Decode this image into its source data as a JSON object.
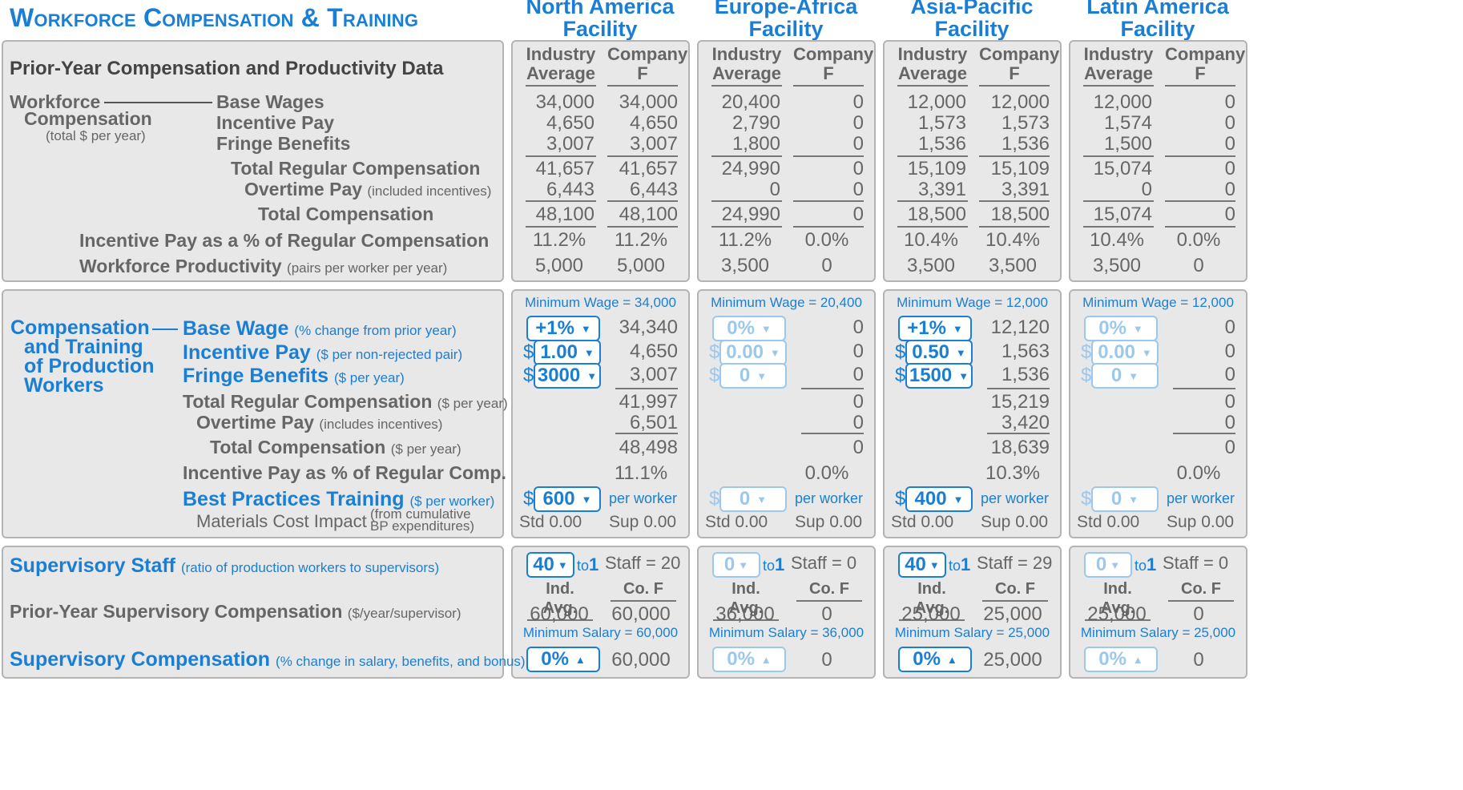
{
  "title": "Workforce Compensation & Training",
  "facilities": [
    "North America Facility",
    "Europe-Africa Facility",
    "Asia-Pacific Facility",
    "Latin America Facility"
  ],
  "col_headers": {
    "industry": "Industry Average",
    "company": "Company F"
  },
  "prior": {
    "heading": "Prior-Year Compensation and Productivity Data",
    "workforce": "Workforce",
    "compensation": "Compensation",
    "total_note": "(total $ per year)",
    "rows": {
      "base_wages": "Base Wages",
      "incentive_pay": "Incentive Pay",
      "fringe": "Fringe Benefits",
      "total_regular": "Total Regular Compensation",
      "overtime": "Overtime Pay",
      "overtime_note": "(included incentives)",
      "total_comp": "Total Compensation",
      "incentive_pct": "Incentive Pay as a % of Regular Compensation",
      "productivity": "Workforce Productivity",
      "productivity_note": "(pairs per worker per year)"
    },
    "values": [
      {
        "ind": [
          "34,000",
          "4,650",
          "3,007",
          "41,657",
          "6,443",
          "48,100",
          "11.2%",
          "5,000"
        ],
        "co": [
          "34,000",
          "4,650",
          "3,007",
          "41,657",
          "6,443",
          "48,100",
          "11.2%",
          "5,000"
        ]
      },
      {
        "ind": [
          "20,400",
          "2,790",
          "1,800",
          "24,990",
          "0",
          "24,990",
          "11.2%",
          "3,500"
        ],
        "co": [
          "0",
          "0",
          "0",
          "0",
          "0",
          "0",
          "0.0%",
          "0"
        ]
      },
      {
        "ind": [
          "12,000",
          "1,573",
          "1,536",
          "15,109",
          "3,391",
          "18,500",
          "10.4%",
          "3,500"
        ],
        "co": [
          "12,000",
          "1,573",
          "1,536",
          "15,109",
          "3,391",
          "18,500",
          "10.4%",
          "3,500"
        ]
      },
      {
        "ind": [
          "12,000",
          "1,574",
          "1,500",
          "15,074",
          "0",
          "15,074",
          "10.4%",
          "3,500"
        ],
        "co": [
          "0",
          "0",
          "0",
          "0",
          "0",
          "0",
          "0.0%",
          "0"
        ]
      }
    ]
  },
  "decisions": {
    "group_label": [
      "Compensation",
      "and Training",
      "of Production",
      "Workers"
    ],
    "base_wage": "Base Wage",
    "base_wage_note": "(% change from prior year)",
    "incentive": "Incentive Pay",
    "incentive_note": "($ per non-rejected pair)",
    "fringe": "Fringe Benefits",
    "fringe_note": "($ per year)",
    "total_regular": "Total Regular Compensation",
    "total_regular_note": "($ per year)",
    "overtime": "Overtime Pay",
    "overtime_note": "(includes incentives)",
    "total_comp": "Total Compensation",
    "total_comp_note": "($ per year)",
    "incentive_pct": "Incentive Pay as % of Regular Comp.",
    "training": "Best Practices Training",
    "training_note": "($ per worker)",
    "materials": "Materials Cost Impact",
    "materials_note_1": "(from cumulative",
    "materials_note_2": "BP expenditures)",
    "per_worker": "per worker",
    "dollar": "$",
    "facilities": [
      {
        "min_wage": "Minimum Wage = 34,000",
        "wage_sel": "+1%",
        "incentive_sel": "1.00",
        "fringe_sel": "3000",
        "wage_val": "34,340",
        "incentive_val": "4,650",
        "fringe_val": "3,007",
        "total_regular": "41,997",
        "overtime": "6,501",
        "total_comp": "48,498",
        "incentive_pct": "11.1%",
        "training_sel": "600",
        "std": "Std 0.00",
        "sup": "Sup 0.00",
        "active": true
      },
      {
        "min_wage": "Minimum Wage = 20,400",
        "wage_sel": "0%",
        "incentive_sel": "0.00",
        "fringe_sel": "0",
        "wage_val": "0",
        "incentive_val": "0",
        "fringe_val": "0",
        "total_regular": "0",
        "overtime": "0",
        "total_comp": "0",
        "incentive_pct": "0.0%",
        "training_sel": "0",
        "std": "Std 0.00",
        "sup": "Sup 0.00",
        "active": false
      },
      {
        "min_wage": "Minimum Wage = 12,000",
        "wage_sel": "+1%",
        "incentive_sel": "0.50",
        "fringe_sel": "1500",
        "wage_val": "12,120",
        "incentive_val": "1,563",
        "fringe_val": "1,536",
        "total_regular": "15,219",
        "overtime": "3,420",
        "total_comp": "18,639",
        "incentive_pct": "10.3%",
        "training_sel": "400",
        "std": "Std 0.00",
        "sup": "Sup 0.00",
        "active": true
      },
      {
        "min_wage": "Minimum Wage = 12,000",
        "wage_sel": "0%",
        "incentive_sel": "0.00",
        "fringe_sel": "0",
        "wage_val": "0",
        "incentive_val": "0",
        "fringe_val": "0",
        "total_regular": "0",
        "overtime": "0",
        "total_comp": "0",
        "incentive_pct": "0.0%",
        "training_sel": "0",
        "std": "Std 0.00",
        "sup": "Sup 0.00",
        "active": false
      }
    ]
  },
  "supervisory": {
    "staff_label": "Supervisory Staff",
    "staff_note": "(ratio of production workers to supervisors)",
    "prior_label": "Prior-Year Supervisory Compensation",
    "prior_note": "($/year/supervisor)",
    "comp_label": "Supervisory Compensation",
    "comp_note": "(% change in salary, benefits, and bonus)",
    "to1_prefix": "to",
    "to1_num": "1",
    "ind_hdr": "Ind. Avg.",
    "co_hdr": "Co. F",
    "facilities": [
      {
        "ratio": "40",
        "staff": "Staff = 20",
        "ind": "60,000",
        "co": "60,000",
        "min_salary": "Minimum Salary = 60,000",
        "comp_sel": "0%",
        "comp_val": "60,000",
        "active": true
      },
      {
        "ratio": "0",
        "staff": "Staff = 0",
        "ind": "36,000",
        "co": "0",
        "min_salary": "Minimum Salary = 36,000",
        "comp_sel": "0%",
        "comp_val": "0",
        "active": false
      },
      {
        "ratio": "40",
        "staff": "Staff = 29",
        "ind": "25,000",
        "co": "25,000",
        "min_salary": "Minimum Salary = 25,000",
        "comp_sel": "0%",
        "comp_val": "25,000",
        "active": true
      },
      {
        "ratio": "0",
        "staff": "Staff = 0",
        "ind": "25,000",
        "co": "0",
        "min_salary": "Minimum Salary = 25,000",
        "comp_sel": "0%",
        "comp_val": "0",
        "active": false
      }
    ]
  },
  "icons": {
    "dropdown": "caret-down-icon",
    "dropup": "caret-up-icon"
  },
  "colors": {
    "accent": "#1a7fd4",
    "disabled": "#9cc8ee",
    "panel": "#e8e8e8"
  }
}
